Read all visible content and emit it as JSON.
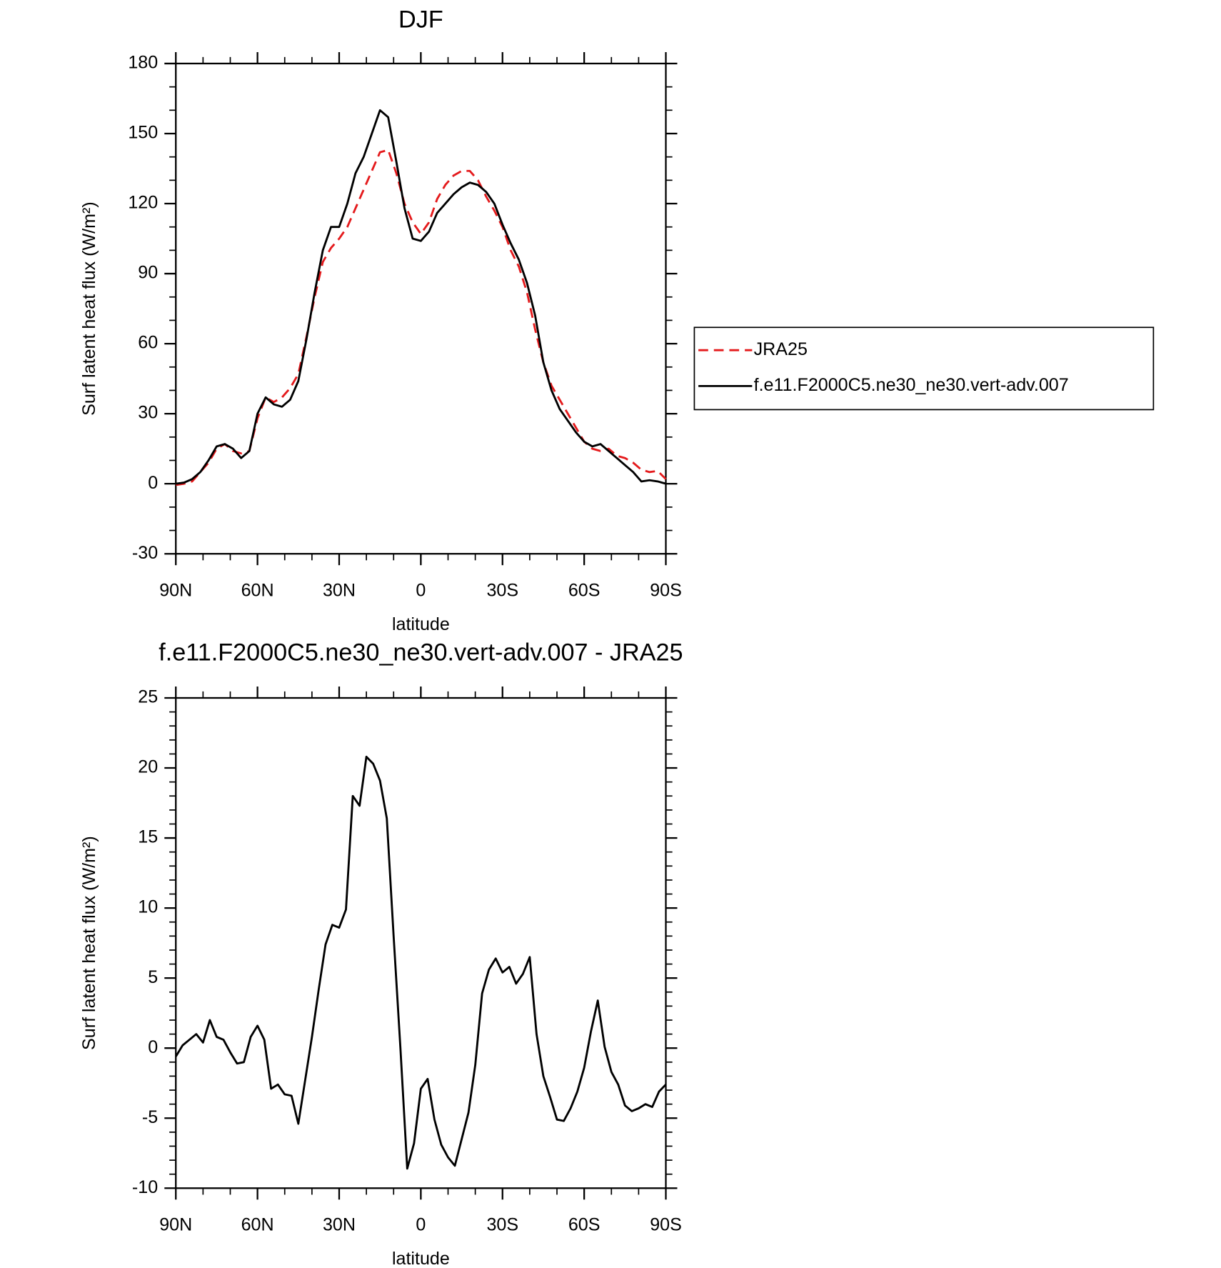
{
  "chart_data": [
    {
      "type": "line",
      "title": "DJF",
      "xlabel": "latitude",
      "ylabel": "Surf latent heat flux (W/m²)",
      "x": [
        90,
        87,
        84,
        81,
        78,
        75,
        72,
        69,
        66,
        63,
        60,
        57,
        54,
        51,
        48,
        45,
        42,
        39,
        36,
        33,
        30,
        27,
        24,
        21,
        18,
        15,
        12,
        9,
        6,
        3,
        0,
        -3,
        -6,
        -9,
        -12,
        -15,
        -18,
        -21,
        -24,
        -27,
        -30,
        -33,
        -36,
        -39,
        -42,
        -45,
        -48,
        -51,
        -54,
        -57,
        -60,
        -63,
        -66,
        -69,
        -72,
        -75,
        -78,
        -81,
        -84,
        -87,
        -90
      ],
      "series": [
        {
          "name": "JRA25",
          "color": "#e41a1c",
          "dashed": true,
          "values": [
            -0.5,
            0,
            1,
            5,
            9,
            15,
            17,
            14,
            13,
            14,
            28,
            37,
            35,
            37,
            41,
            47,
            63,
            80,
            95,
            101,
            105,
            110,
            118,
            126,
            134,
            142,
            143,
            133,
            120,
            112,
            107,
            112,
            122,
            128,
            132,
            134,
            134,
            130,
            123,
            117,
            110,
            100,
            93,
            82,
            66,
            52,
            42,
            36,
            30,
            24,
            18,
            15,
            14,
            15,
            12,
            11,
            9,
            6,
            5,
            5.5,
            2
          ]
        },
        {
          "name": "f.e11.F2000C5.ne30_ne30.vert-adv.007",
          "color": "#000000",
          "values": [
            0,
            0.5,
            2,
            5,
            10,
            16,
            17,
            15,
            11,
            14,
            30,
            37,
            34,
            33,
            36,
            44,
            62,
            82,
            100,
            110,
            110,
            120,
            133,
            140,
            150,
            160,
            157,
            138,
            118,
            105,
            104,
            108,
            116,
            120,
            124,
            127,
            129,
            128,
            125,
            120,
            111,
            103,
            96,
            86,
            72,
            52,
            40,
            32,
            27,
            22,
            18,
            16,
            17,
            14,
            11,
            8,
            5,
            1,
            1.5,
            1,
            0
          ]
        }
      ],
      "xlim": [
        90,
        -90
      ],
      "xticks": [
        {
          "value": 90,
          "label": "90N"
        },
        {
          "value": 60,
          "label": "60N"
        },
        {
          "value": 30,
          "label": "30N"
        },
        0,
        {
          "value": -30,
          "label": "30S"
        },
        {
          "value": -60,
          "label": "60S"
        },
        {
          "value": -90,
          "label": "90S"
        }
      ],
      "ylim": [
        -30,
        180
      ],
      "yticks": [
        -30,
        0,
        30,
        60,
        90,
        120,
        150,
        180
      ],
      "legend": "right"
    },
    {
      "type": "line",
      "title": "f.e11.F2000C5.ne30_ne30.vert-adv.007 - JRA25",
      "xlabel": "latitude",
      "ylabel": "Surf latent heat flux (W/m²)",
      "x": [
        90,
        87.5,
        85,
        82.5,
        80,
        77.5,
        75,
        72.5,
        70,
        67.5,
        65,
        62.5,
        60,
        57.5,
        55,
        52.5,
        50,
        47.5,
        45,
        42.5,
        40,
        37.5,
        35,
        32.5,
        30,
        27.5,
        25,
        22.5,
        20,
        17.5,
        15,
        12.5,
        10,
        7.5,
        5,
        2.5,
        0,
        -2.5,
        -5,
        -7.5,
        -10,
        -12.5,
        -15,
        -17.5,
        -20,
        -22.5,
        -25,
        -27.5,
        -30,
        -32.5,
        -35,
        -37.5,
        -40,
        -42.5,
        -45,
        -47.5,
        -50,
        -52.5,
        -55,
        -57.5,
        -60,
        -62.5,
        -65,
        -67.5,
        -70,
        -72.5,
        -75,
        -77.5,
        -80,
        -82.5,
        -85,
        -87.5,
        -90
      ],
      "series": [
        {
          "color": "#000000",
          "values": [
            -0.6,
            0.2,
            0.6,
            1.0,
            0.4,
            2.0,
            0.8,
            0.6,
            -0.3,
            -1.1,
            -1.0,
            0.8,
            1.6,
            0.6,
            -2.9,
            -2.6,
            -3.3,
            -3.4,
            -5.4,
            -2.3,
            0.8,
            4.2,
            7.4,
            8.8,
            8.6,
            9.9,
            18.0,
            17.3,
            20.8,
            20.3,
            19.1,
            16.4,
            8.0,
            0.0,
            -8.6,
            -6.8,
            -2.9,
            -2.2,
            -5.1,
            -6.9,
            -7.8,
            -8.4,
            -6.5,
            -4.6,
            -1.2,
            3.9,
            5.6,
            6.4,
            5.4,
            5.8,
            4.6,
            5.3,
            6.5,
            1.0,
            -2.0,
            -3.5,
            -5.1,
            -5.2,
            -4.3,
            -3.1,
            -1.4,
            1.2,
            3.4,
            0.1,
            -1.7,
            -2.6,
            -4.1,
            -4.5,
            -4.3,
            -4.0,
            -4.2,
            -3.1,
            -2.6
          ]
        }
      ],
      "xlim": [
        90,
        -90
      ],
      "xticks": [
        {
          "value": 90,
          "label": "90N"
        },
        {
          "value": 60,
          "label": "60N"
        },
        {
          "value": 30,
          "label": "30N"
        },
        0,
        {
          "value": -30,
          "label": "30S"
        },
        {
          "value": -60,
          "label": "60S"
        },
        {
          "value": -90,
          "label": "90S"
        }
      ],
      "ylim": [
        -10,
        25
      ],
      "yticks": [
        -10,
        -5,
        0,
        5,
        10,
        15,
        20,
        25
      ]
    }
  ]
}
